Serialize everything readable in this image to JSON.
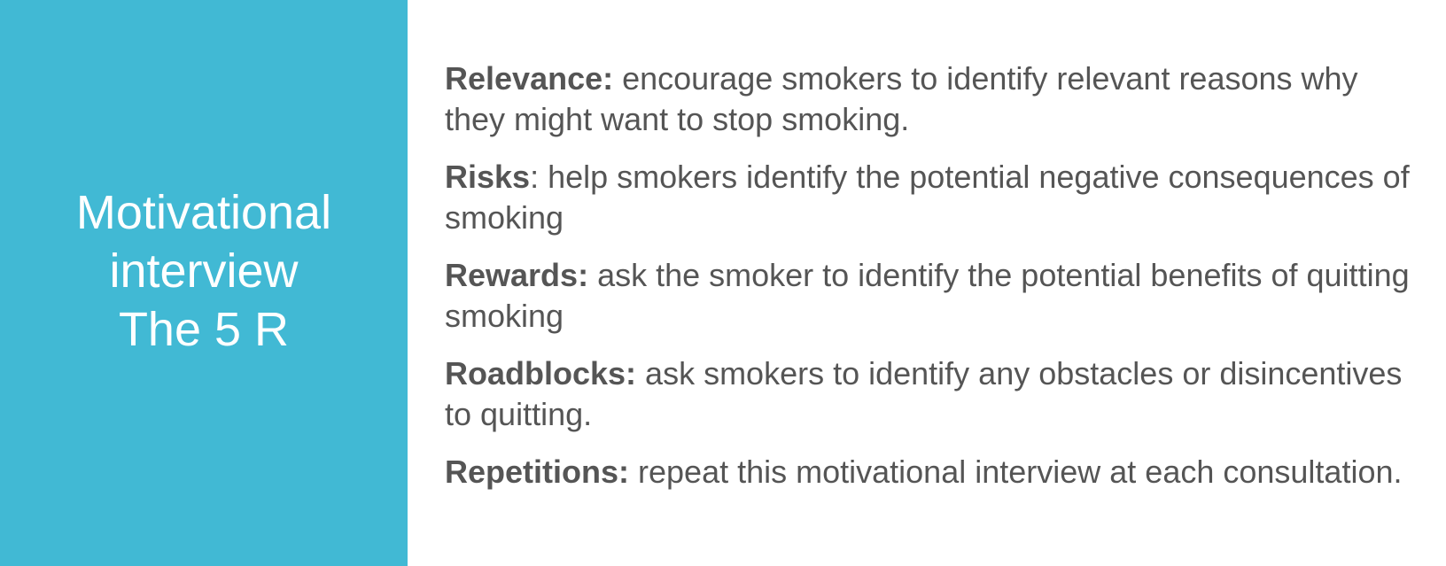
{
  "sidebar": {
    "title_lines": [
      "Motivational",
      "interview",
      "The 5 R"
    ]
  },
  "items": [
    {
      "term": "Relevance:",
      "text": " encourage smokers to identify relevant reasons why they might want to stop smoking."
    },
    {
      "term": "Risks",
      "text": ": help smokers identify the potential negative consequences of smoking"
    },
    {
      "term": "Rewards:",
      "text": " ask the smoker to identify the potential benefits of quitting smoking"
    },
    {
      "term": "Roadblocks:",
      "text": " ask smokers to identify any obstacles or disincentives to quitting."
    },
    {
      "term": "Repetitions:",
      "text": " repeat this motivational interview at each consultation."
    }
  ],
  "colors": {
    "panel": "#41b9d4",
    "body_text": "#555555",
    "title_text": "#ffffff"
  }
}
